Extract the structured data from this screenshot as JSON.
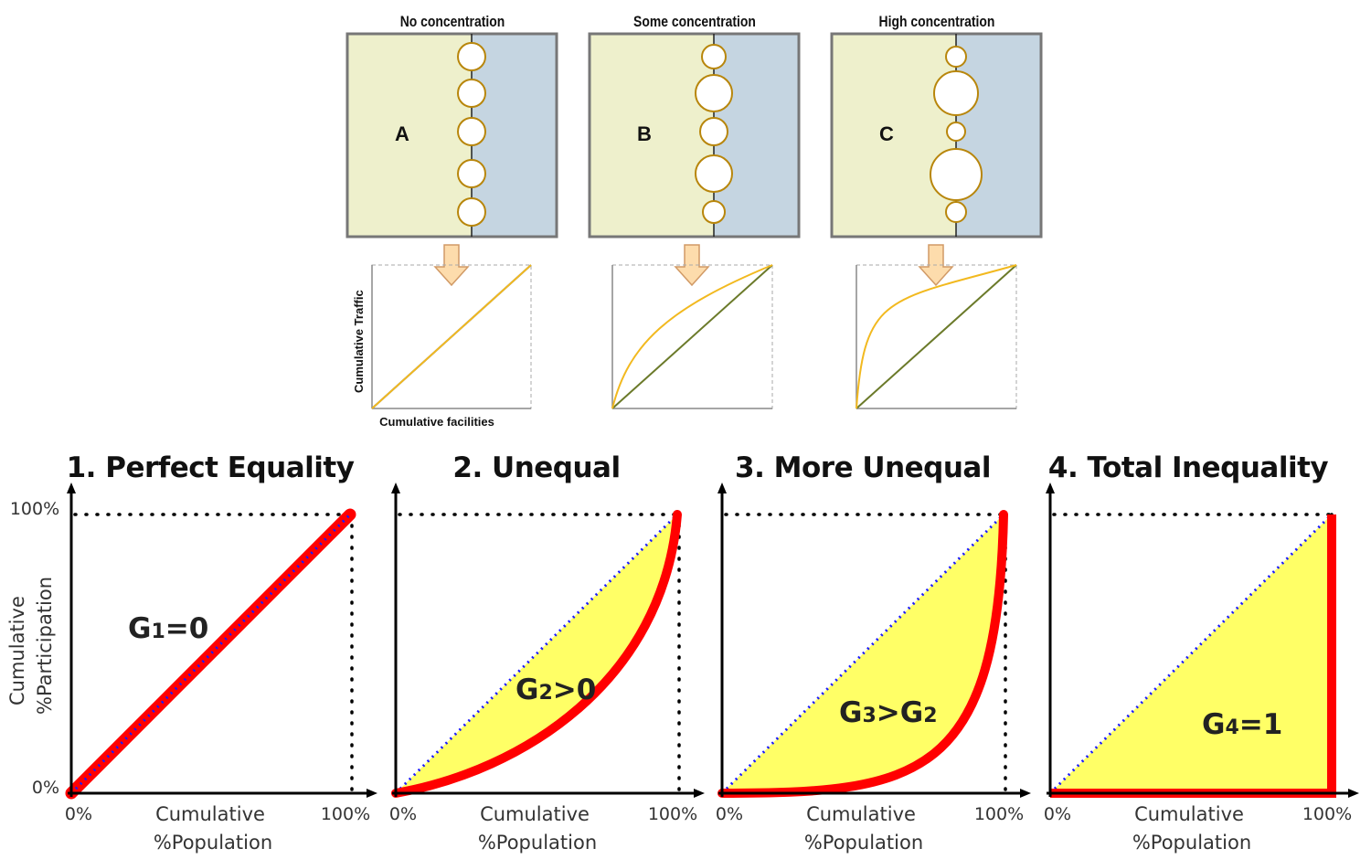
{
  "colors": {
    "left_region": "#eef0cc",
    "right_region": "#c5d5e1",
    "node_stroke": "#b8860b",
    "equality_line": "#6b7a2a",
    "lorenz_small": "#f2b91f",
    "arrow_fill": "#fddcac",
    "arrow_stroke": "#d19a66",
    "lorenz_big": "#ff0000",
    "fill_area": "#ffff66",
    "diag_dots": "#1a1aff"
  },
  "top_panels": [
    {
      "title": "No concentration",
      "letter": "A",
      "node_sizes": [
        15,
        15,
        15,
        15,
        15
      ]
    },
    {
      "title": "Some concentration",
      "letter": "B",
      "node_sizes": [
        13,
        20,
        15,
        20,
        12
      ]
    },
    {
      "title": "High concentration",
      "letter": "C",
      "node_sizes": [
        11,
        24,
        10,
        28,
        11
      ]
    }
  ],
  "small_charts": {
    "ylabel": "Cumulative  Traffic",
    "xlabel": "Cumulative  facilities"
  },
  "bottom_charts": [
    {
      "title": "1. Perfect Equality",
      "gini_label": "G1=0",
      "gini_prefix": "G",
      "gini_sub": "1",
      "gini_rest": "=0",
      "shape": "equal"
    },
    {
      "title": "2. Unequal",
      "gini_label": "G2>0",
      "gini_prefix": "G",
      "gini_sub": "2",
      "gini_rest": ">0",
      "shape": "unequal"
    },
    {
      "title": "3. More Unequal",
      "gini_label": "G3>G2",
      "gini_prefix": "G",
      "gini_sub": "3",
      "gini_rest": ">G",
      "gini_sub2": "2",
      "shape": "more"
    },
    {
      "title": "4. Total Inequality",
      "gini_label": "G4=1",
      "gini_prefix": "G",
      "gini_sub": "4",
      "gini_rest": "=1",
      "shape": "total"
    }
  ],
  "axis_labels": {
    "y_top": "100%",
    "y_bottom": "0%",
    "x_left": "0%",
    "x_right": "100%",
    "x_title_line1": "Cumulative",
    "x_title_line2": "%Population",
    "y_title_line1": "Cumulative",
    "y_title_line2": "%Participation"
  }
}
